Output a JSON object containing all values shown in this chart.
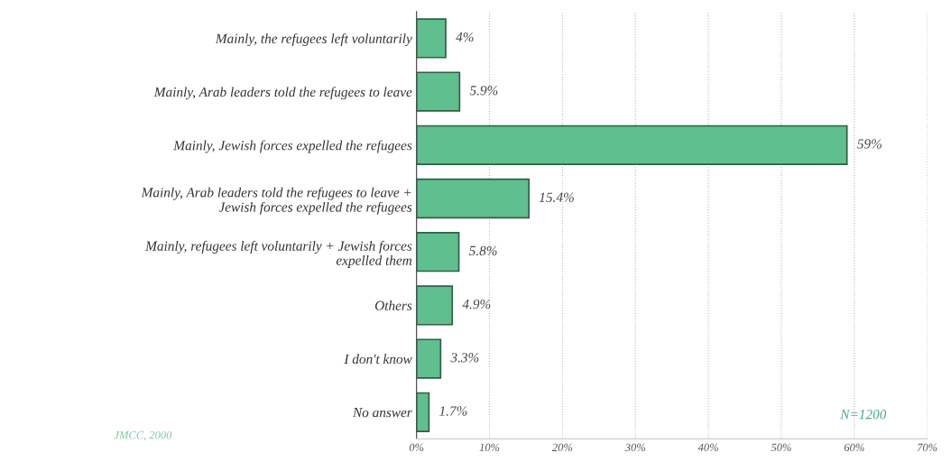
{
  "chart_data": {
    "type": "bar",
    "orientation": "horizontal",
    "categories": [
      "Mainly, the refugees left voluntarily",
      "Mainly, Arab leaders told the refugees to leave",
      "Mainly, Jewish forces expelled the refugees",
      "Mainly, Arab leaders told the refugees to leave +\nJewish forces expelled the refugees",
      "Mainly, refugees left voluntarily + Jewish forces\nexpelled them",
      "Others",
      "I don't know",
      "No answer"
    ],
    "values": [
      4,
      5.9,
      59,
      15.4,
      5.8,
      4.9,
      3.3,
      1.7
    ],
    "value_labels": [
      "4%",
      "5.9%",
      "59%",
      "15.4%",
      "5.8%",
      "4.9%",
      "3.3%",
      "1.7%"
    ],
    "color": "#5fbf8f",
    "xlim": [
      0,
      70
    ],
    "xticks": [
      {
        "value": 0,
        "label": "0%"
      },
      {
        "value": 10,
        "label": "10%"
      },
      {
        "value": 20,
        "label": "20%"
      },
      {
        "value": 30,
        "label": "30%"
      },
      {
        "value": 40,
        "label": "40%"
      },
      {
        "value": 50,
        "label": "50%"
      },
      {
        "value": 60,
        "label": "60%"
      },
      {
        "value": 70,
        "label": "70%"
      }
    ],
    "grid": "x",
    "annotations": [
      "N=1200",
      "JMCC, 2000"
    ]
  }
}
